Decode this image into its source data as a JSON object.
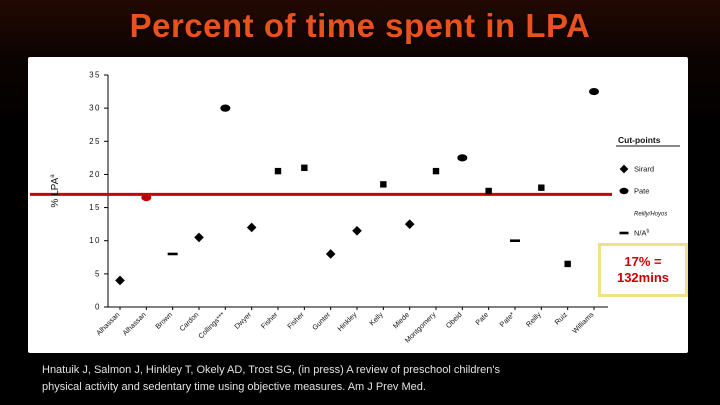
{
  "slide": {
    "title": "Percent of time spent in LPA",
    "citation": {
      "line1": "Hnatuik J, Salmon J, Hinkley T, Okely AD, Trost SG, (in press) A review of preschool children's",
      "line2": "physical activity and sedentary time using objective measures. Am J Prev Med."
    },
    "callout": {
      "line1": "17% =",
      "line2": "132mins",
      "text_color": "#cc0000",
      "border_color": "#efe08a"
    }
  },
  "chart_data": {
    "type": "scatter",
    "title": "Percent of time spent in LPA",
    "xlabel": "",
    "ylabel": "% LPA",
    "ylabel_superscript": "a",
    "ylim": [
      0,
      35
    ],
    "ytick_step": 5,
    "grid": false,
    "reference_line": {
      "value": 17,
      "color": "#cc0000"
    },
    "legend": {
      "title": "Cut-points",
      "position": "right",
      "entries": [
        {
          "label": "Sirard",
          "marker": "diamond"
        },
        {
          "label": "Pate",
          "marker": "circle"
        },
        {
          "label": "Reilly/Hoyos",
          "marker": "none",
          "small": true
        },
        {
          "label": "N/A",
          "superscript": "b",
          "marker": "dash"
        }
      ]
    },
    "categories": [
      "Alhassan",
      "Alhassan",
      "Brown",
      "Cardon",
      "Collings***",
      "Dwyer",
      "Fisher",
      "Fisher",
      "Gunter",
      "Hinkley",
      "Kelly",
      "Miede",
      "Montgomery",
      "Obeid",
      "Pate",
      "Pate*",
      "Reilly",
      "Ruiz",
      "Williams"
    ],
    "points": [
      {
        "category": "Alhassan",
        "value": 4,
        "marker": "diamond"
      },
      {
        "category": "Alhassan",
        "value": 16.5,
        "marker": "circle",
        "color": "#c00000"
      },
      {
        "category": "Brown",
        "value": 8,
        "marker": "dash"
      },
      {
        "category": "Cardon",
        "value": 10.5,
        "marker": "diamond"
      },
      {
        "category": "Collings***",
        "value": 30,
        "marker": "circle"
      },
      {
        "category": "Dwyer",
        "value": 12,
        "marker": "diamond"
      },
      {
        "category": "Fisher",
        "value": 20.5,
        "marker": "square"
      },
      {
        "category": "Fisher",
        "value": 21,
        "marker": "square"
      },
      {
        "category": "Gunter",
        "value": 8,
        "marker": "diamond"
      },
      {
        "category": "Hinkley",
        "value": 11.5,
        "marker": "diamond"
      },
      {
        "category": "Kelly",
        "value": 18.5,
        "marker": "square"
      },
      {
        "category": "Miede",
        "value": 12.5,
        "marker": "diamond"
      },
      {
        "category": "Montgomery",
        "value": 20.5,
        "marker": "square"
      },
      {
        "category": "Obeid",
        "value": 22.5,
        "marker": "circle"
      },
      {
        "category": "Pate",
        "value": 17.5,
        "marker": "square"
      },
      {
        "category": "Pate*",
        "value": 10,
        "marker": "dash"
      },
      {
        "category": "Reilly",
        "value": 18,
        "marker": "square"
      },
      {
        "category": "Ruiz",
        "value": 6.5,
        "marker": "square"
      },
      {
        "category": "Williams",
        "value": 32.5,
        "marker": "circle"
      }
    ]
  }
}
